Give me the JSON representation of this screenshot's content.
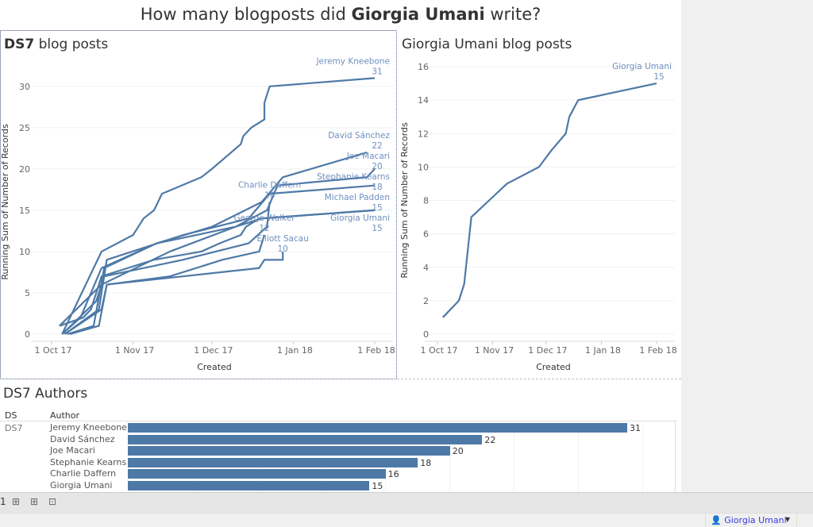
{
  "dashboard": {
    "title_pre": "How many blogposts did ",
    "title_bold": "Giorgia Umani",
    "title_post": " write?"
  },
  "left_chart": {
    "title_bold": "DS7",
    "title_rest": " blog posts"
  },
  "right_chart": {
    "title": "Giorgia Umani blog posts"
  },
  "table": {
    "title": "DS7 Authors",
    "col_ds": "DS",
    "col_author": "Author",
    "ds_value": "DS7"
  },
  "tabbar": {
    "items": [
      "new-worksheet-icon",
      "new-dashboard-icon",
      "new-story-icon"
    ],
    "first_label": "1"
  },
  "statusbar": {
    "user": "Giorgia Umani"
  },
  "colors": {
    "line": "#4e79a7",
    "label": "#6f8fbf"
  },
  "chart_data": [
    {
      "type": "line",
      "title": "DS7 blog posts",
      "xlabel": "Created",
      "ylabel": "Running Sum of Number of Records",
      "xticks": [
        "1 Oct 17",
        "1 Nov 17",
        "1 Dec 17",
        "1 Jan 18",
        "1 Feb 18"
      ],
      "yticks": [
        0,
        5,
        10,
        15,
        20,
        25,
        30
      ],
      "ylim": [
        0,
        32
      ],
      "series": [
        {
          "name": "Jeremy Kneebone",
          "end_label": "31",
          "points": [
            [
              "2017-10-05",
              0
            ],
            [
              "2017-10-20",
              10
            ],
            [
              "2017-11-01",
              12
            ],
            [
              "2017-11-05",
              14
            ],
            [
              "2017-11-09",
              15
            ],
            [
              "2017-11-12",
              17
            ],
            [
              "2017-11-27",
              19
            ],
            [
              "2017-12-01",
              20
            ],
            [
              "2017-12-12",
              23
            ],
            [
              "2017-12-13",
              24
            ],
            [
              "2017-12-16",
              25
            ],
            [
              "2017-12-21",
              26
            ],
            [
              "2017-12-21",
              28
            ],
            [
              "2017-12-23",
              30
            ],
            [
              "2018-02-01",
              31
            ]
          ]
        },
        {
          "name": "David Sánchez",
          "end_label": "22",
          "points": [
            [
              "2017-10-05",
              0
            ],
            [
              "2017-10-12",
              2
            ],
            [
              "2017-10-20",
              8
            ],
            [
              "2017-11-10",
              11
            ],
            [
              "2017-12-01",
              13
            ],
            [
              "2017-12-20",
              16
            ],
            [
              "2017-12-28",
              19
            ],
            [
              "2018-01-29",
              22
            ]
          ]
        },
        {
          "name": "Joe Macari",
          "end_label": "20",
          "points": [
            [
              "2017-10-04",
              1
            ],
            [
              "2017-10-20",
              6
            ],
            [
              "2017-11-15",
              10
            ],
            [
              "2017-12-10",
              13
            ],
            [
              "2017-12-22",
              15
            ],
            [
              "2017-12-26",
              18
            ],
            [
              "2018-01-29",
              19
            ],
            [
              "2018-02-01",
              20
            ]
          ]
        },
        {
          "name": "Stephanie Kearns",
          "end_label": "18",
          "points": [
            [
              "2017-10-06",
              0
            ],
            [
              "2017-10-19",
              3
            ],
            [
              "2017-10-22",
              9
            ],
            [
              "2017-11-20",
              12
            ],
            [
              "2017-12-15",
              14
            ],
            [
              "2017-12-23",
              17
            ],
            [
              "2018-02-01",
              18
            ]
          ]
        },
        {
          "name": "Charlie Daffern",
          "end_label": "16",
          "points": [
            [
              "2017-10-05",
              0
            ],
            [
              "2017-10-18",
              4
            ],
            [
              "2017-10-21",
              7
            ],
            [
              "2017-11-20",
              9
            ],
            [
              "2017-12-15",
              11
            ],
            [
              "2017-12-22",
              13
            ],
            [
              "2017-12-23",
              16
            ]
          ]
        },
        {
          "name": "Michael Padden",
          "end_label": "15",
          "points": [
            [
              "2017-10-07",
              0
            ],
            [
              "2017-10-17",
              1
            ],
            [
              "2017-10-21",
              8
            ],
            [
              "2017-11-10",
              11
            ],
            [
              "2017-12-10",
              13
            ],
            [
              "2017-12-20",
              14
            ],
            [
              "2018-02-01",
              15
            ]
          ]
        },
        {
          "name": "Giorgia Umani",
          "end_label": "15",
          "points": [
            [
              "2017-10-04",
              1
            ],
            [
              "2017-10-13",
              2
            ],
            [
              "2017-10-16",
              3
            ],
            [
              "2017-10-20",
              7
            ],
            [
              "2017-10-30",
              8
            ],
            [
              "2017-11-09",
              9
            ],
            [
              "2017-11-27",
              10
            ],
            [
              "2017-12-04",
              11
            ],
            [
              "2017-12-12",
              12
            ],
            [
              "2017-12-14",
              13
            ],
            [
              "2017-12-19",
              14
            ],
            [
              "2018-02-01",
              15
            ]
          ]
        },
        {
          "name": "George Walker",
          "end_label": "12",
          "points": [
            [
              "2017-10-06",
              0
            ],
            [
              "2017-10-20",
              3
            ],
            [
              "2017-10-22",
              6
            ],
            [
              "2017-11-15",
              7
            ],
            [
              "2017-12-05",
              9
            ],
            [
              "2017-12-19",
              10
            ],
            [
              "2017-12-21",
              12
            ]
          ]
        },
        {
          "name": "Elliott Sacau",
          "end_label": "10",
          "points": [
            [
              "2017-10-08",
              0
            ],
            [
              "2017-10-19",
              1
            ],
            [
              "2017-10-22",
              6
            ],
            [
              "2017-11-20",
              7
            ],
            [
              "2017-12-19",
              8
            ],
            [
              "2017-12-21",
              9
            ],
            [
              "2017-12-28",
              9
            ],
            [
              "2017-12-28",
              10
            ]
          ]
        }
      ]
    },
    {
      "type": "line",
      "title": "Giorgia Umani blog posts",
      "xlabel": "Created",
      "ylabel": "Running Sum of Number of Records",
      "xticks": [
        "1 Oct 17",
        "1 Nov 17",
        "1 Dec 17",
        "1 Jan 18",
        "1 Feb 18"
      ],
      "yticks": [
        0,
        2,
        4,
        6,
        8,
        10,
        12,
        14,
        16
      ],
      "ylim": [
        0,
        16
      ],
      "series": [
        {
          "name": "Giorgia Umani",
          "end_label": "15",
          "points": [
            [
              "2017-10-04",
              1
            ],
            [
              "2017-10-13",
              2
            ],
            [
              "2017-10-16",
              3
            ],
            [
              "2017-10-20",
              7
            ],
            [
              "2017-10-30",
              8
            ],
            [
              "2017-11-09",
              9
            ],
            [
              "2017-11-27",
              10
            ],
            [
              "2017-12-04",
              11
            ],
            [
              "2017-12-12",
              12
            ],
            [
              "2017-12-14",
              13
            ],
            [
              "2017-12-19",
              14
            ],
            [
              "2018-02-01",
              15
            ]
          ]
        }
      ]
    },
    {
      "type": "bar",
      "title": "DS7 Authors",
      "categories": [
        "Jeremy Kneebone",
        "David Sánchez",
        "Joe Macari",
        "Stephanie Kearns",
        "Charlie Daffern",
        "Giorgia Umani"
      ],
      "values": [
        31,
        22,
        20,
        18,
        16,
        15
      ]
    }
  ]
}
